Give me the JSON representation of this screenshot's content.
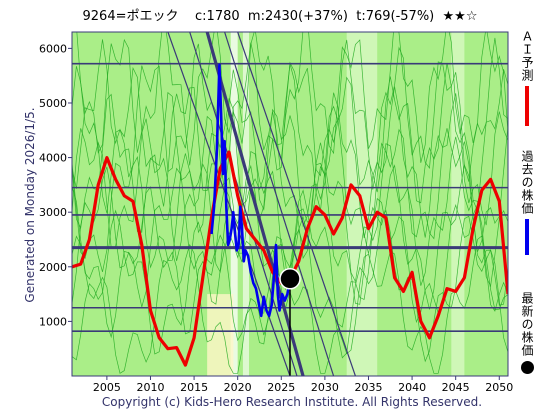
{
  "header": {
    "code": "9264=ポエック",
    "current": "c:1780",
    "max": "m:2430(+37%)",
    "min": "t:769(-57%)",
    "stars": "★★☆"
  },
  "side_text": "Generated on Monday 2026/1/5.",
  "footer": "Copyright (c) Kids-Hero Research Institute. All Rights Reserved.",
  "legend": {
    "ai_label": "ＡＩ予測",
    "past_label": "過去の株価",
    "latest_label": "最新の株価"
  },
  "colors": {
    "ai_forecast": "#ee0000",
    "past_price": "#0000ee",
    "latest_marker": "#000000",
    "background": "#aaee88",
    "grid": "#3a3a78",
    "thin_forecast": "#22aa22"
  },
  "chart_data": {
    "type": "line",
    "xlim": [
      2001,
      2051
    ],
    "ylim": [
      0,
      6300
    ],
    "x_ticks": [
      2005,
      2010,
      2015,
      2020,
      2025,
      2030,
      2035,
      2040,
      2045,
      2050
    ],
    "y_ticks": [
      1000,
      2000,
      3000,
      4000,
      5000,
      6000
    ],
    "horizontal_levels": [
      5720,
      3450,
      2950,
      2350,
      1250,
      820
    ],
    "vertical_line_x": 2026,
    "latest": {
      "x": 2026,
      "y": 1780
    },
    "series": [
      {
        "key": "ai",
        "points": [
          [
            2001,
            2000
          ],
          [
            2002,
            2050
          ],
          [
            2003,
            2500
          ],
          [
            2004,
            3500
          ],
          [
            2005,
            4000
          ],
          [
            2006,
            3600
          ],
          [
            2007,
            3300
          ],
          [
            2008,
            3200
          ],
          [
            2009,
            2400
          ],
          [
            2010,
            1200
          ],
          [
            2011,
            700
          ],
          [
            2012,
            500
          ],
          [
            2013,
            520
          ],
          [
            2014,
            200
          ],
          [
            2015,
            700
          ],
          [
            2016,
            1800
          ],
          [
            2017,
            2900
          ],
          [
            2018,
            3800
          ],
          [
            2019,
            4100
          ],
          [
            2020,
            3300
          ],
          [
            2021,
            2700
          ],
          [
            2022,
            2500
          ],
          [
            2023,
            2300
          ],
          [
            2024,
            1900
          ],
          [
            2025,
            1700
          ],
          [
            2026,
            1780
          ],
          [
            2027,
            2100
          ],
          [
            2028,
            2700
          ],
          [
            2029,
            3100
          ],
          [
            2030,
            2950
          ],
          [
            2031,
            2600
          ],
          [
            2032,
            2900
          ],
          [
            2033,
            3500
          ],
          [
            2034,
            3300
          ],
          [
            2035,
            2700
          ],
          [
            2036,
            3000
          ],
          [
            2037,
            2900
          ],
          [
            2038,
            1800
          ],
          [
            2039,
            1550
          ],
          [
            2040,
            1900
          ],
          [
            2041,
            1000
          ],
          [
            2042,
            700
          ],
          [
            2043,
            1100
          ],
          [
            2044,
            1600
          ],
          [
            2045,
            1550
          ],
          [
            2046,
            1800
          ],
          [
            2047,
            2700
          ],
          [
            2048,
            3400
          ],
          [
            2049,
            3600
          ],
          [
            2050,
            3200
          ],
          [
            2051,
            1500
          ]
        ]
      },
      {
        "key": "past",
        "points": [
          [
            2017.0,
            2600
          ],
          [
            2017.3,
            3100
          ],
          [
            2017.6,
            4100
          ],
          [
            2017.9,
            5700
          ],
          [
            2018.1,
            4800
          ],
          [
            2018.3,
            3700
          ],
          [
            2018.5,
            4300
          ],
          [
            2018.7,
            3100
          ],
          [
            2018.9,
            2400
          ],
          [
            2019.1,
            2500
          ],
          [
            2019.3,
            2700
          ],
          [
            2019.5,
            3000
          ],
          [
            2019.7,
            2600
          ],
          [
            2019.9,
            2300
          ],
          [
            2020.1,
            2400
          ],
          [
            2020.3,
            3100
          ],
          [
            2020.5,
            2700
          ],
          [
            2020.7,
            2100
          ],
          [
            2020.9,
            2300
          ],
          [
            2021.2,
            2200
          ],
          [
            2021.5,
            1900
          ],
          [
            2021.8,
            1700
          ],
          [
            2022.1,
            1600
          ],
          [
            2022.4,
            1350
          ],
          [
            2022.7,
            1100
          ],
          [
            2023.0,
            1450
          ],
          [
            2023.3,
            1200
          ],
          [
            2023.6,
            1100
          ],
          [
            2023.9,
            1300
          ],
          [
            2024.2,
            1900
          ],
          [
            2024.4,
            2400
          ],
          [
            2024.6,
            1500
          ],
          [
            2024.8,
            1200
          ],
          [
            2025.1,
            1500
          ],
          [
            2025.4,
            1380
          ],
          [
            2025.7,
            1500
          ],
          [
            2026.0,
            1780
          ]
        ]
      }
    ]
  }
}
